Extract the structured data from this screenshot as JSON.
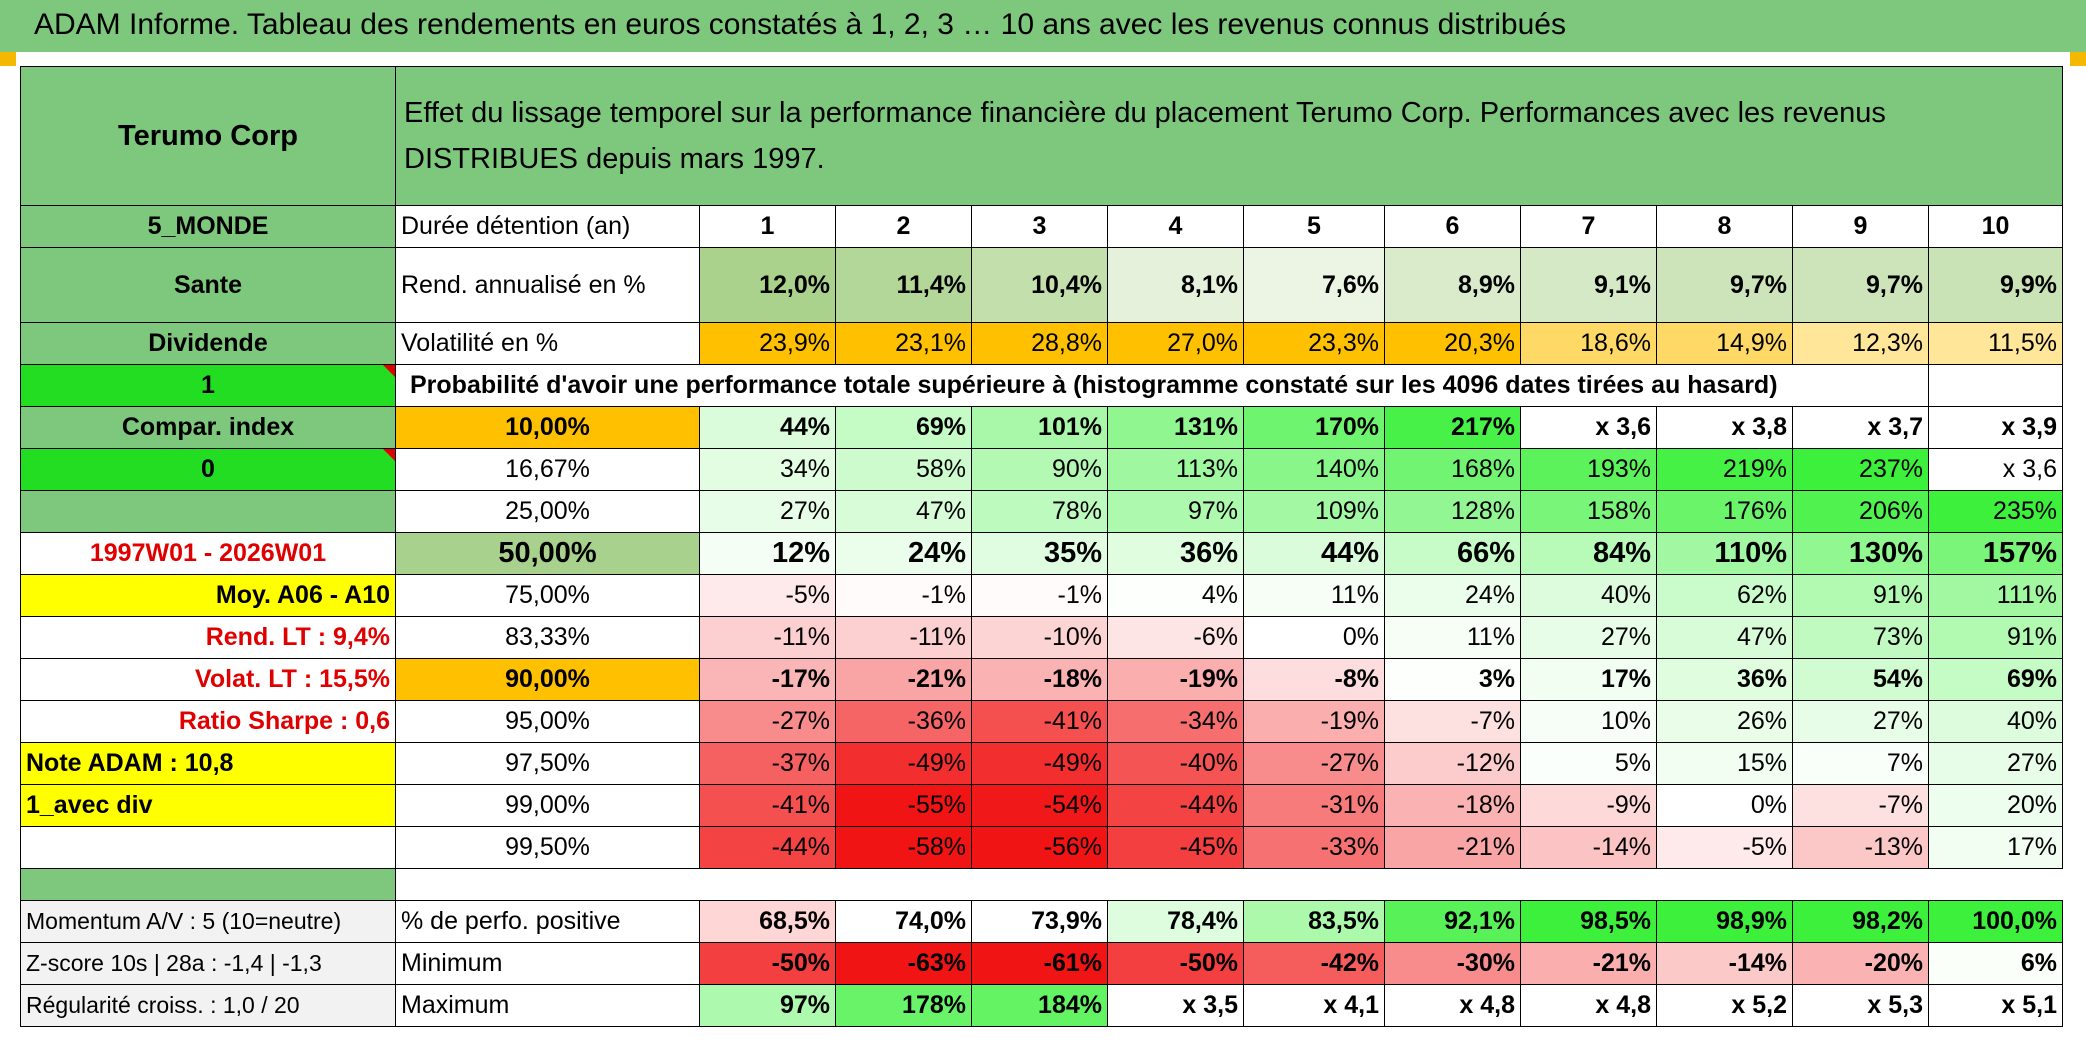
{
  "header": {
    "title": "ADAM Informe. Tableau des rendements en euros constatés à 1, 2, 3 … 10 ans avec les revenus connus distribués"
  },
  "left": {
    "name": "Terumo Corp",
    "region": "5_MONDE",
    "sector": "Sante",
    "type": "Dividende",
    "flag1": "1",
    "compar": "Compar. index",
    "flag0": "0",
    "period": "1997W01 - 2026W01",
    "moy": "Moy. A06 - A10",
    "rend_lt": "Rend. LT :   9,4%",
    "volat_lt": "Volat. LT :   15,5%",
    "sharpe": "Ratio Sharpe :    0,6",
    "note": "Note ADAM : 10,8",
    "avec_div": "1_avec div",
    "momentum": "Momentum A/V : 5 (10=neutre)",
    "zscore": "Z-score 10s | 28a : -1,4 | -1,3",
    "regularite": "Régularité croiss. : 1,0 / 20"
  },
  "description": "Effet du lissage temporel sur la performance financière du placement Terumo Corp. Performances avec les revenus DISTRIBUES depuis mars 1997.",
  "labels": {
    "duree": "Durée détention (an)",
    "rend": "Rend. annualisé en %",
    "vol": "Volatilité en %",
    "proba": "Probabilité d'avoir une performance totale supérieure à (histogramme constaté sur les 4096 dates tirées au hasard)",
    "positive": "% de perfo. positive",
    "minimum": "Minimum",
    "maximum": "Maximum"
  },
  "years": [
    "1",
    "2",
    "3",
    "4",
    "5",
    "6",
    "7",
    "8",
    "9",
    "10"
  ],
  "rend_values": [
    "12,0%",
    "11,4%",
    "10,4%",
    "8,1%",
    "7,6%",
    "8,9%",
    "9,1%",
    "9,7%",
    "9,7%",
    "9,9%"
  ],
  "vol_values": [
    "23,9%",
    "23,1%",
    "28,8%",
    "27,0%",
    "23,3%",
    "20,3%",
    "18,6%",
    "14,9%",
    "12,3%",
    "11,5%"
  ],
  "prob_rows": [
    {
      "p": "10,00%",
      "v": [
        "44%",
        "69%",
        "101%",
        "131%",
        "170%",
        "217%",
        "x 3,6",
        "x 3,8",
        "x 3,7",
        "x 3,9"
      ]
    },
    {
      "p": "16,67%",
      "v": [
        "34%",
        "58%",
        "90%",
        "113%",
        "140%",
        "168%",
        "193%",
        "219%",
        "237%",
        "x 3,6"
      ]
    },
    {
      "p": "25,00%",
      "v": [
        "27%",
        "47%",
        "78%",
        "97%",
        "109%",
        "128%",
        "158%",
        "176%",
        "206%",
        "235%"
      ]
    },
    {
      "p": "50,00%",
      "v": [
        "12%",
        "24%",
        "35%",
        "36%",
        "44%",
        "66%",
        "84%",
        "110%",
        "130%",
        "157%"
      ]
    },
    {
      "p": "75,00%",
      "v": [
        "-5%",
        "-1%",
        "-1%",
        "4%",
        "11%",
        "24%",
        "40%",
        "62%",
        "91%",
        "111%"
      ]
    },
    {
      "p": "83,33%",
      "v": [
        "-11%",
        "-11%",
        "-10%",
        "-6%",
        "0%",
        "11%",
        "27%",
        "47%",
        "73%",
        "91%"
      ]
    },
    {
      "p": "90,00%",
      "v": [
        "-17%",
        "-21%",
        "-18%",
        "-19%",
        "-8%",
        "3%",
        "17%",
        "36%",
        "54%",
        "69%"
      ]
    },
    {
      "p": "95,00%",
      "v": [
        "-27%",
        "-36%",
        "-41%",
        "-34%",
        "-19%",
        "-7%",
        "10%",
        "26%",
        "27%",
        "40%"
      ]
    },
    {
      "p": "97,50%",
      "v": [
        "-37%",
        "-49%",
        "-49%",
        "-40%",
        "-27%",
        "-12%",
        "5%",
        "15%",
        "7%",
        "27%"
      ]
    },
    {
      "p": "99,00%",
      "v": [
        "-41%",
        "-55%",
        "-54%",
        "-44%",
        "-31%",
        "-18%",
        "-9%",
        "0%",
        "-7%",
        "20%"
      ]
    },
    {
      "p": "99,50%",
      "v": [
        "-44%",
        "-58%",
        "-56%",
        "-45%",
        "-33%",
        "-21%",
        "-14%",
        "-5%",
        "-13%",
        "17%"
      ]
    }
  ],
  "positive_values": [
    "68,5%",
    "74,0%",
    "73,9%",
    "78,4%",
    "83,5%",
    "92,1%",
    "98,5%",
    "98,9%",
    "98,2%",
    "100,0%"
  ],
  "minimum_values": [
    "-50%",
    "-63%",
    "-61%",
    "-50%",
    "-42%",
    "-30%",
    "-21%",
    "-14%",
    "-20%",
    "6%"
  ],
  "maximum_values": [
    "97%",
    "178%",
    "184%",
    "x 3,5",
    "x 4,1",
    "x 4,8",
    "x 4,8",
    "x 5,2",
    "x 5,3",
    "x 5,1"
  ],
  "colors": {
    "header_green": "#7ec87e",
    "bright_green": "#22dd22",
    "yellow": "#ffff00",
    "orange": "#ffc000",
    "red": "#e00000"
  }
}
